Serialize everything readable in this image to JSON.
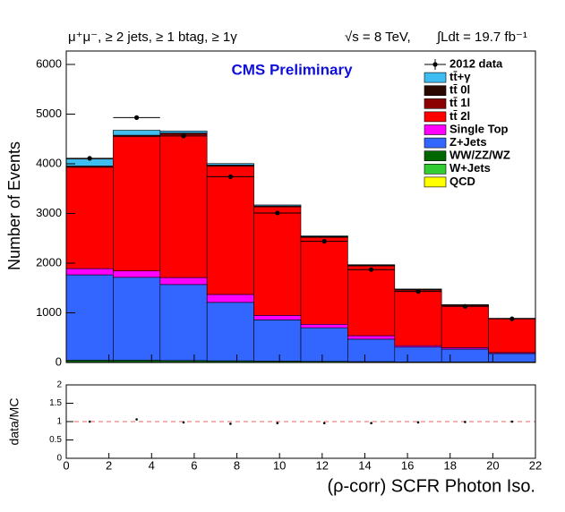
{
  "chart_data": [
    {
      "type": "stacked_histogram",
      "title": "μ⁺μ⁻, ≥ 2 jets, ≥ 1 btag, ≥ 1γ",
      "annotations": [
        "√s = 8 TeV,",
        "∫Ldt = 19.7 fb⁻¹",
        "CMS Preliminary"
      ],
      "y_label": "Number of Events",
      "xlim": [
        0,
        22
      ],
      "ylim": [
        0,
        6270
      ],
      "yticks": [
        0,
        1000,
        2000,
        3000,
        4000,
        5000,
        6000
      ],
      "bins": [
        0,
        2.2,
        4.4,
        6.6,
        8.8,
        11,
        13.2,
        15.4,
        17.6,
        19.8,
        22
      ],
      "legend": "top-right",
      "series": [
        {
          "name": "QCD",
          "color": "#ffff00",
          "values": [
            0,
            0,
            0,
            0,
            0,
            0,
            0,
            0,
            0,
            0
          ]
        },
        {
          "name": "W+Jets",
          "color": "#33cc33",
          "values": [
            5,
            5,
            5,
            5,
            4,
            3,
            3,
            2,
            2,
            2
          ]
        },
        {
          "name": "WW/ZZ/WZ",
          "color": "#006600",
          "values": [
            40,
            40,
            35,
            30,
            25,
            20,
            15,
            10,
            10,
            10
          ]
        },
        {
          "name": "Z+Jets",
          "color": "#3366ff",
          "values": [
            1720,
            1670,
            1530,
            1175,
            830,
            677,
            452,
            298,
            258,
            168
          ]
        },
        {
          "name": "Single Top",
          "color": "#ff00ff",
          "values": [
            125,
            130,
            140,
            160,
            90,
            70,
            70,
            30,
            30,
            20
          ]
        },
        {
          "name": "tt̄ 2l",
          "color": "#ff0000",
          "values": [
            2040,
            2700,
            2880,
            2580,
            2185,
            1750,
            1405,
            1120,
            850,
            680
          ]
        },
        {
          "name": "tt̄ 1l",
          "color": "#8b0000",
          "values": [
            20,
            25,
            25,
            20,
            15,
            12,
            10,
            8,
            6,
            5
          ]
        },
        {
          "name": "tt̄ 0l",
          "color": "#2a0800",
          "values": [
            5,
            5,
            5,
            5,
            3,
            3,
            2,
            2,
            1,
            1
          ]
        },
        {
          "name": "tt̄+γ",
          "color": "#3fbdf0",
          "values": [
            140,
            100,
            40,
            30,
            20,
            15,
            12,
            10,
            8,
            5
          ]
        }
      ],
      "data": {
        "name": "2012 data",
        "color": "#000000",
        "x": [
          1.1,
          3.3,
          5.5,
          7.7,
          9.9,
          12.1,
          14.3,
          16.5,
          18.7,
          20.9
        ],
        "values": [
          4110,
          4930,
          4560,
          3740,
          3010,
          2440,
          1870,
          1430,
          1130,
          880
        ]
      }
    },
    {
      "type": "ratio",
      "y_label": "data/MC",
      "x_label": "(ρ-corr) SCFR Photon Iso.",
      "xlim": [
        0,
        22
      ],
      "xticks": [
        0,
        2,
        4,
        6,
        8,
        10,
        12,
        14,
        16,
        18,
        20,
        22
      ],
      "ylim": [
        0,
        2
      ],
      "yticks": [
        0,
        0.5,
        1,
        1.5,
        2
      ],
      "reference_line": 1,
      "x": [
        1.1,
        3.3,
        5.5,
        7.7,
        9.9,
        12.1,
        14.3,
        16.5,
        18.7,
        20.9
      ],
      "values": [
        1.0,
        1.06,
        0.98,
        0.94,
        0.96,
        0.96,
        0.96,
        0.98,
        0.99,
        1.0
      ]
    }
  ]
}
